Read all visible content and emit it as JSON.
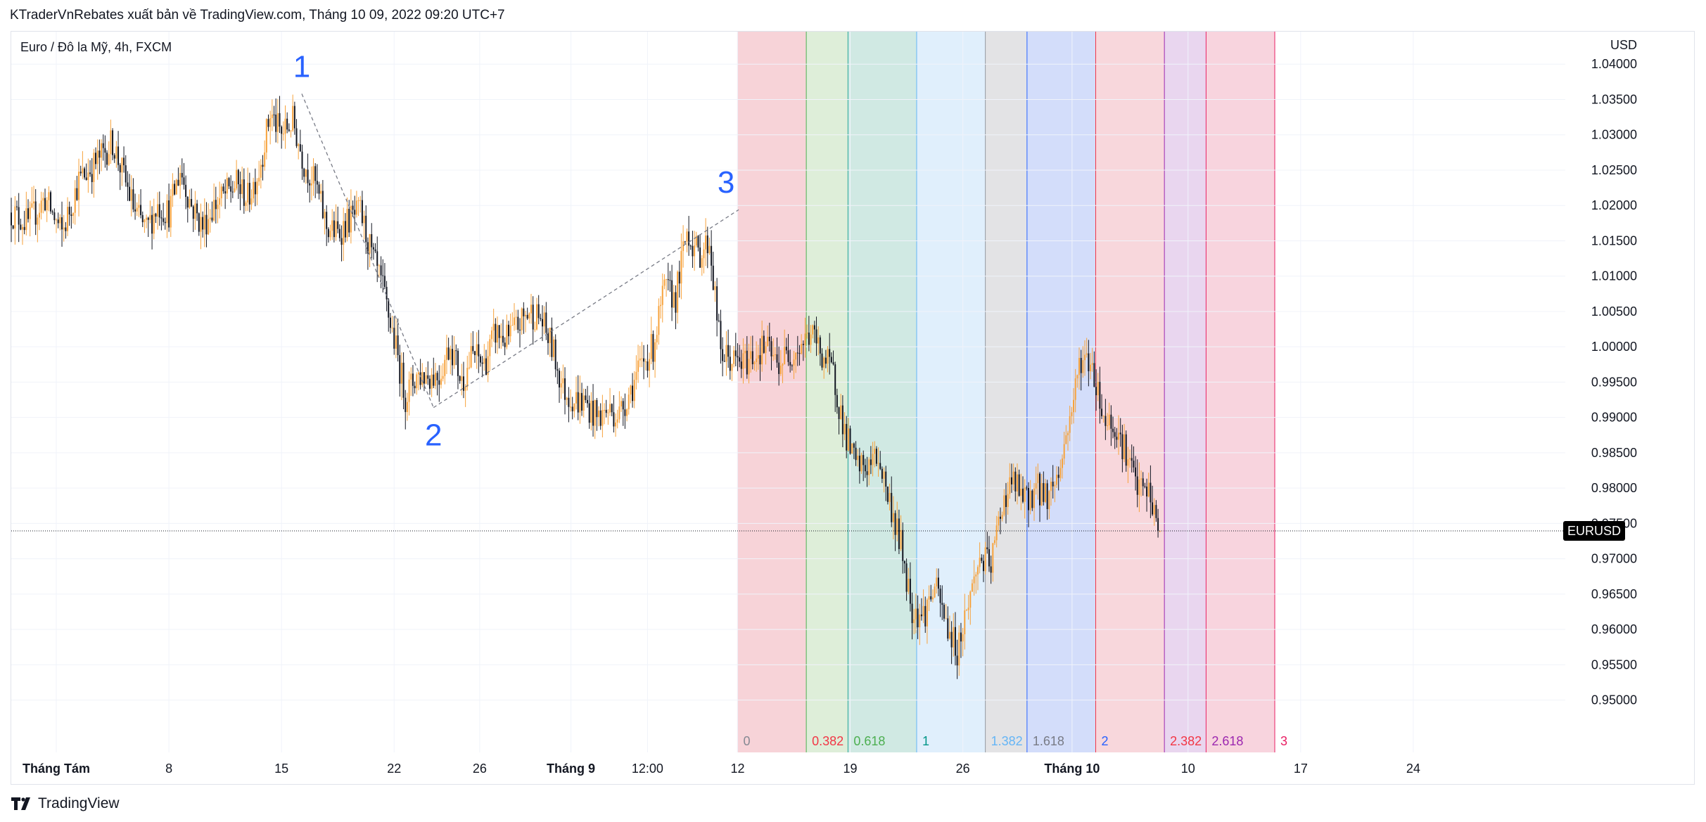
{
  "header": {
    "publisher_text": "KTraderVnRebates xuất bản về TradingView.com, Tháng 10 09, 2022 09:20 UTC+7"
  },
  "footer": {
    "brand": "TradingView",
    "logo_icon": "tradingview-logo-icon"
  },
  "chart_data": {
    "type": "candlestick",
    "title": "Euro / Đô la Mỹ, 4h, FXCM",
    "currency_label": "USD",
    "symbol_badge": "EURUSD",
    "last_price": 0.97395,
    "ylim": [
      0.9426,
      1.0446
    ],
    "y_ticks": [
      "1.04000",
      "1.03500",
      "1.03000",
      "1.02500",
      "1.02000",
      "1.01500",
      "1.01000",
      "1.00500",
      "1.00000",
      "0.99500",
      "0.99000",
      "0.98500",
      "0.98000",
      "0.97500",
      "0.97000",
      "0.96500",
      "0.96000",
      "0.95500",
      "0.95000"
    ],
    "x_domain_days": [
      0,
      138
    ],
    "x_ticks": [
      {
        "label": "Tháng Tám",
        "day": 4,
        "bold": true
      },
      {
        "label": "8",
        "day": 14,
        "bold": false
      },
      {
        "label": "15",
        "day": 24,
        "bold": false
      },
      {
        "label": "22",
        "day": 34,
        "bold": false
      },
      {
        "label": "26",
        "day": 41.6,
        "bold": false
      },
      {
        "label": "Tháng 9",
        "day": 49.7,
        "bold": true
      },
      {
        "label": "12:00",
        "day": 56.5,
        "bold": false
      },
      {
        "label": "12",
        "day": 64.5,
        "bold": false
      },
      {
        "label": "19",
        "day": 74.5,
        "bold": false
      },
      {
        "label": "26",
        "day": 84.5,
        "bold": false
      },
      {
        "label": "Tháng 10",
        "day": 94.2,
        "bold": true
      },
      {
        "label": "10",
        "day": 104.5,
        "bold": false
      },
      {
        "label": "17",
        "day": 114.5,
        "bold": false
      },
      {
        "label": "24",
        "day": 124.5,
        "bold": false
      }
    ],
    "colors": {
      "up": "#f7a23b",
      "down": "#131722"
    },
    "ohlc_anchors": [
      [
        0,
        1.019
      ],
      [
        1.5,
        1.0175
      ],
      [
        3,
        1.021
      ],
      [
        4.5,
        1.016
      ],
      [
        6,
        1.0235
      ],
      [
        7.5,
        1.026
      ],
      [
        9,
        1.029
      ],
      [
        10,
        1.024
      ],
      [
        11,
        1.019
      ],
      [
        12,
        1.0165
      ],
      [
        13,
        1.02
      ],
      [
        14,
        1.019
      ],
      [
        15,
        1.025
      ],
      [
        16,
        1.02
      ],
      [
        17,
        1.017
      ],
      [
        18,
        1.02
      ],
      [
        19,
        1.0215
      ],
      [
        20,
        1.023
      ],
      [
        21,
        1.021
      ],
      [
        22,
        1.025
      ],
      [
        23,
        1.033
      ],
      [
        24,
        1.03
      ],
      [
        25,
        1.032
      ],
      [
        26,
        1.026
      ],
      [
        27,
        1.023
      ],
      [
        28,
        1.017
      ],
      [
        29,
        1.016
      ],
      [
        30,
        1.018
      ],
      [
        31,
        1.019
      ],
      [
        32,
        1.013
      ],
      [
        33,
        1.008
      ],
      [
        34,
        1.001
      ],
      [
        35,
        0.993
      ],
      [
        36,
        0.996
      ],
      [
        37,
        0.996
      ],
      [
        38,
        0.996
      ],
      [
        39,
        1.0005
      ],
      [
        40,
        0.995
      ],
      [
        41,
        0.999
      ],
      [
        42,
        0.9975
      ],
      [
        43,
        1.002
      ],
      [
        44,
        1.001
      ],
      [
        45,
        1.003
      ],
      [
        46,
        1.005
      ],
      [
        47,
        1.004
      ],
      [
        48,
        1.0
      ],
      [
        49,
        0.994
      ],
      [
        50,
        0.9925
      ],
      [
        51,
        0.992
      ],
      [
        52,
        0.99
      ],
      [
        53,
        0.991
      ],
      [
        54,
        0.9905
      ],
      [
        55,
        0.994
      ],
      [
        56,
        0.9975
      ],
      [
        57,
        1.0
      ],
      [
        58,
        1.008
      ],
      [
        59,
        1.007
      ],
      [
        60,
        1.0165
      ],
      [
        61,
        1.013
      ],
      [
        62,
        1.015
      ],
      [
        63,
        0.999
      ],
      [
        64,
        0.998
      ],
      [
        65,
        0.9975
      ],
      [
        66,
        0.999
      ],
      [
        67,
        1.0
      ],
      [
        68,
        0.9975
      ],
      [
        69,
        0.999
      ],
      [
        70,
        1.0
      ],
      [
        71,
        1.002
      ],
      [
        72,
        0.999
      ],
      [
        73,
        0.996
      ],
      [
        74,
        0.988
      ],
      [
        75,
        0.983
      ],
      [
        76,
        0.983
      ],
      [
        77,
        0.9845
      ],
      [
        78,
        0.978
      ],
      [
        79,
        0.972
      ],
      [
        80,
        0.963
      ],
      [
        81,
        0.962
      ],
      [
        82,
        0.966
      ],
      [
        83,
        0.961
      ],
      [
        84,
        0.957
      ],
      [
        85,
        0.964
      ],
      [
        86,
        0.97
      ],
      [
        87,
        0.969
      ],
      [
        88,
        0.978
      ],
      [
        89,
        0.981
      ],
      [
        90,
        0.978
      ],
      [
        91,
        0.98
      ],
      [
        92,
        0.979
      ],
      [
        93,
        0.982
      ],
      [
        94,
        0.99
      ],
      [
        95,
        0.9985
      ],
      [
        96,
        0.9975
      ],
      [
        97,
        0.99
      ],
      [
        98,
        0.989
      ],
      [
        99,
        0.985
      ],
      [
        100,
        0.98
      ],
      [
        101,
        0.9795
      ],
      [
        102,
        0.9735
      ]
    ],
    "wave_points": [
      {
        "label": "1",
        "day": 25.8,
        "price": 1.0358
      },
      {
        "label": "2",
        "day": 37.5,
        "price": 0.9914
      },
      {
        "label": "3",
        "day": 64.6,
        "price": 1.0194
      }
    ],
    "fib_zones": [
      {
        "label": "0",
        "start": 64.5,
        "end": 70.6,
        "fill": "#f7d1d6",
        "line": "#e57373",
        "text": "#868993"
      },
      {
        "label": "0.382",
        "start": 70.6,
        "end": 74.3,
        "fill": "#dcedd7",
        "line": "#4caf50",
        "text": "#f23645"
      },
      {
        "label": "0.618",
        "start": 74.3,
        "end": 80.4,
        "fill": "#cde8e2",
        "line": "#26a69a",
        "text": "#4caf50"
      },
      {
        "label": "1",
        "start": 80.4,
        "end": 86.5,
        "fill": "#deeefc",
        "line": "#64b5f6",
        "text": "#009688"
      },
      {
        "label": "1.382",
        "start": 86.5,
        "end": 90.2,
        "fill": "#e1e2e4",
        "line": "#9598a1",
        "text": "#64b5f6"
      },
      {
        "label": "1.618",
        "start": 90.2,
        "end": 96.3,
        "fill": "#d1dbfa",
        "line": "#2962ff",
        "text": "#787b86"
      },
      {
        "label": "2",
        "start": 96.3,
        "end": 102.4,
        "fill": "#f8d5da",
        "line": "#f23645",
        "text": "#2962ff"
      },
      {
        "label": "2.382",
        "start": 102.4,
        "end": 106.1,
        "fill": "#e8d4ee",
        "line": "#9c27b0",
        "text": "#f23645"
      },
      {
        "label": "2.618",
        "start": 106.1,
        "end": 112.2,
        "fill": "#f8d2dc",
        "line": "#e91e63",
        "text": "#9c27b0"
      },
      {
        "label": "3",
        "start": 112.2,
        "end": 112.2,
        "fill": "#ffffff",
        "line": "#e91e63",
        "text": "#e91e63"
      }
    ]
  }
}
